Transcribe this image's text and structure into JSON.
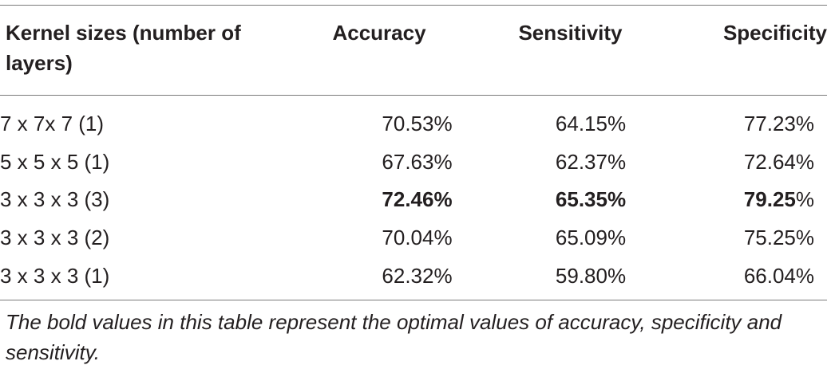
{
  "table": {
    "headers": {
      "kernel": "Kernel sizes (number of layers)",
      "accuracy": "Accuracy",
      "sensitivity": "Sensitivity",
      "specificity": "Specificity"
    },
    "rows": [
      {
        "kernel": "7 x 7x 7 (1)",
        "accuracy": "70.53%",
        "sensitivity": "64.15%",
        "specificity": "77.23%"
      },
      {
        "kernel": "5 x 5 x 5 (1)",
        "accuracy": "67.63%",
        "sensitivity": "62.37%",
        "specificity": "72.64%"
      },
      {
        "kernel": "3 x 3 x 3 (3)",
        "accuracy": "72.46%",
        "sensitivity": "65.35%",
        "specificity_bold": "79.25",
        "specificity_suffix": "%"
      },
      {
        "kernel": "3 x 3 x 3 (2)",
        "accuracy": "70.04%",
        "sensitivity": "65.09%",
        "specificity": "75.25%"
      },
      {
        "kernel": "3 x 3 x 3 (1)",
        "accuracy": "62.32%",
        "sensitivity": "59.80%",
        "specificity": "66.04%"
      }
    ],
    "footnote": "The bold values in this table represent the optimal values of accuracy, specificity and sensitivity."
  }
}
